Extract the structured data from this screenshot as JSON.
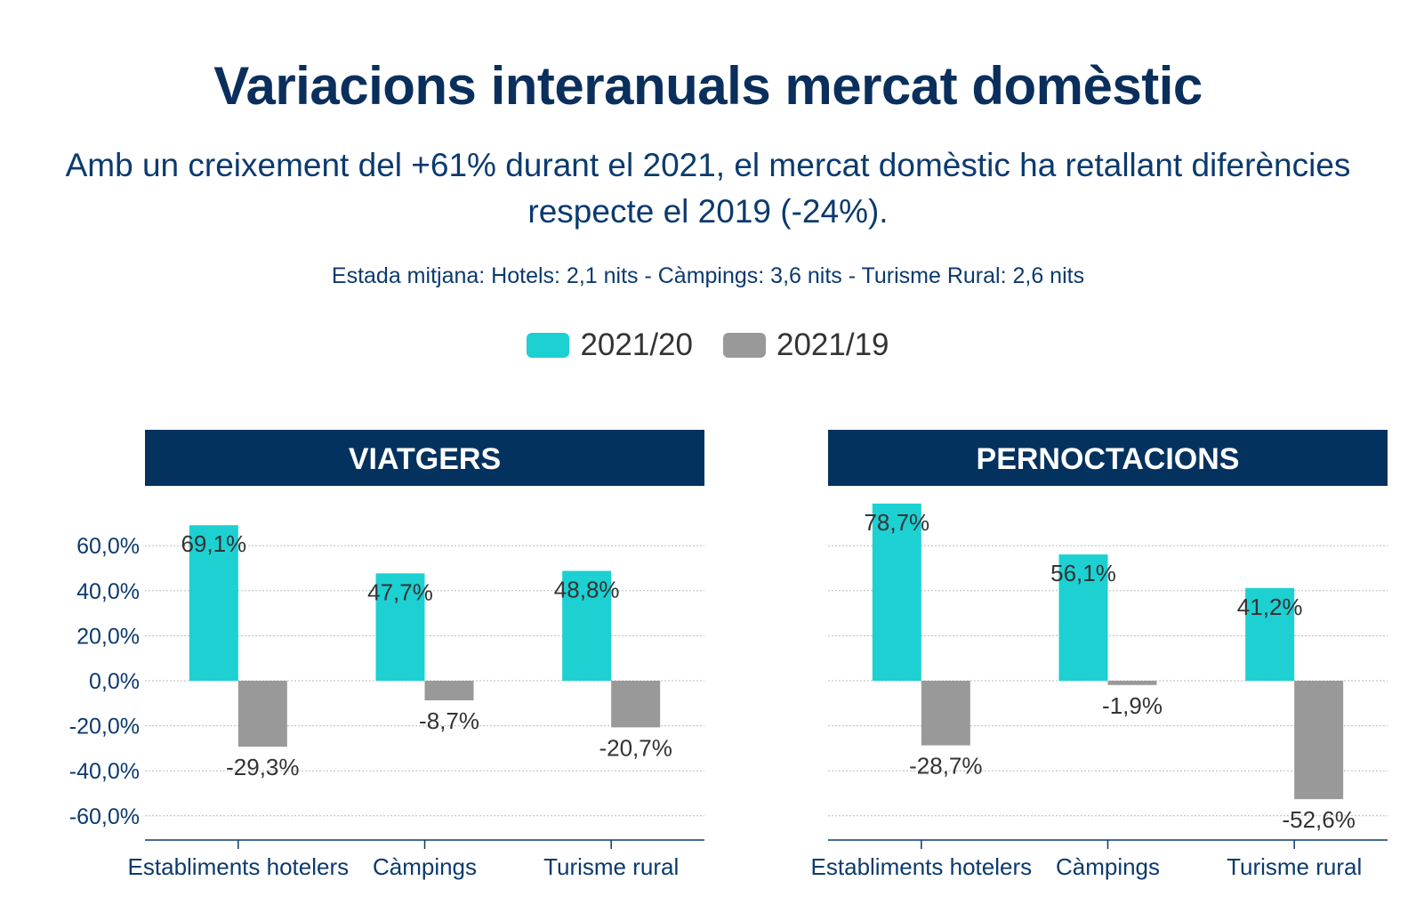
{
  "header": {
    "title": "Variacions interanuals mercat domèstic",
    "subtitle": "Amb un creixement del +61% durant el 2021, el mercat domèstic ha retallant diferències respecte el 2019 (-24%).",
    "note": "Estada mitjana: Hotels: 2,1 nits - Càmpings: 3,6 nits - Turisme Rural: 2,6 nits"
  },
  "legend": [
    {
      "label": "2021/20",
      "color": "#1dd0d2"
    },
    {
      "label": "2021/19",
      "color": "#999999"
    }
  ],
  "colors": {
    "panel_header": "#03325f",
    "axis": "#0b3a6e",
    "grid": "#bbbbbb"
  },
  "chart_data": [
    {
      "type": "bar",
      "title": "VIATGERS",
      "categories": [
        "Establiments hotelers",
        "Càmpings",
        "Turisme rural"
      ],
      "series": [
        {
          "name": "2021/20",
          "values": [
            69.1,
            47.7,
            48.8
          ],
          "labels": [
            "69,1%",
            "47,7%",
            "48,8%"
          ]
        },
        {
          "name": "2021/19",
          "values": [
            -29.3,
            -8.7,
            -20.7
          ],
          "labels": [
            "-29,3%",
            "-8,7%",
            "-20,7%"
          ]
        }
      ],
      "yticks": [
        "60,0%",
        "40,0%",
        "20,0%",
        "0,0%",
        "-20,0%",
        "-40,0%",
        "-60,0%"
      ],
      "ytick_values": [
        60,
        40,
        20,
        0,
        -20,
        -40,
        -60
      ],
      "ylim": [
        -70,
        72
      ],
      "grid": true,
      "show_y_axis": true
    },
    {
      "type": "bar",
      "title": "PERNOCTACIONS",
      "categories": [
        "Establiments hotelers",
        "Càmpings",
        "Turisme rural"
      ],
      "series": [
        {
          "name": "2021/20",
          "values": [
            78.7,
            56.1,
            41.2
          ],
          "labels": [
            "78,7%",
            "56,1%",
            "41,2%"
          ]
        },
        {
          "name": "2021/19",
          "values": [
            -28.7,
            -1.9,
            -52.6
          ],
          "labels": [
            "-28,7%",
            "-1,9%",
            "-52,6%"
          ]
        }
      ],
      "ytick_values": [
        60,
        40,
        20,
        0,
        -20,
        -40,
        -60
      ],
      "ylim": [
        -70,
        80
      ],
      "grid": true,
      "show_y_axis": false
    }
  ]
}
